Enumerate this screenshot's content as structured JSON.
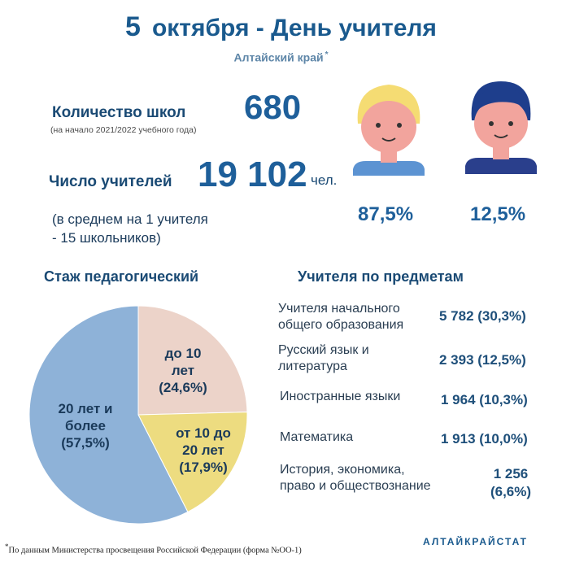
{
  "header": {
    "title_num": "5",
    "title_text": "октября - День учителя",
    "region": "Алтайский  край",
    "asterisk": "*"
  },
  "schools": {
    "label": "Количество школ",
    "note": "(на начало 2021/2022 учебного года)",
    "value": "680"
  },
  "teachers": {
    "label": "Число учителей",
    "value": "19 102",
    "unit": "чел.",
    "avg_line1": "(в среднем на 1 учителя",
    "avg_line2": "- 15 школьников)"
  },
  "gender": {
    "female_pct": "87,5%",
    "male_pct": "12,5%",
    "colors": {
      "skin": "#f2a49d",
      "female_hair": "#f5dc73",
      "male_hair": "#1e3e8c",
      "shirt_female": "#5c93d2",
      "shirt_male": "#2a3f8c"
    }
  },
  "experience": {
    "heading": "Стаж педагогический",
    "labels": [
      [
        "до 10",
        "лет",
        "(24,6%)"
      ],
      [
        "от 10 до",
        "20 лет",
        "(17,9%)"
      ],
      [
        "20 лет и",
        "более",
        "(57,5%)"
      ]
    ]
  },
  "chart_data": {
    "type": "pie",
    "title": "Стаж педагогический",
    "slices": [
      {
        "label": "до 10 лет",
        "value": 24.6,
        "color": "#ecd3c9"
      },
      {
        "label": "от 10 до 20 лет",
        "value": 17.9,
        "color": "#eddc80"
      },
      {
        "label": "20 лет и более",
        "value": 57.5,
        "color": "#8eb2d8"
      }
    ]
  },
  "subjects": {
    "heading": "Учителя  по предметам",
    "rows": [
      {
        "name1": "Учителя начального",
        "name2": "общего образования",
        "val1": "5 782 (30,3%)",
        "val2": ""
      },
      {
        "name1": "Русский язык и",
        "name2": "литература",
        "val1": "2 393 (12,5%)",
        "val2": ""
      },
      {
        "name1": "Иностранные языки",
        "name2": "",
        "val1": "1 964 (10,3%)",
        "val2": ""
      },
      {
        "name1": "Математика",
        "name2": "",
        "val1": "1 913 (10,0%)",
        "val2": ""
      },
      {
        "name1": "История, экономика,",
        "name2": "право и обществознание",
        "val1": "1 256",
        "val2": "(6,6%)"
      }
    ]
  },
  "footer": {
    "asterisk": "*",
    "note": "По данным Министерства просвещения Российской Федерации (форма №ОО-1)",
    "brand": "АЛТАЙКРАЙСТАТ"
  }
}
